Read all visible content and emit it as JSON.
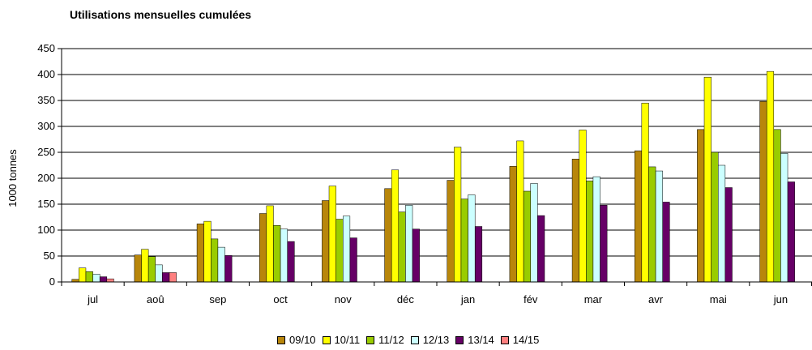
{
  "chart_data": {
    "type": "bar",
    "title": "Utilisations mensuelles cumulées",
    "ylabel": "1000 tonnes",
    "xlabel": "",
    "ylim": [
      0,
      450
    ],
    "yticks": [
      "0",
      "50",
      "100",
      "150",
      "200",
      "250",
      "300",
      "350",
      "400",
      "450"
    ],
    "grid": true,
    "legend_position": "bottom",
    "categories": [
      "jul",
      "aoû",
      "sep",
      "oct",
      "nov",
      "déc",
      "jan",
      "fév",
      "mar",
      "avr",
      "mai",
      "jun"
    ],
    "series": [
      {
        "name": "09/10",
        "color": "#B8860B",
        "values": [
          5,
          52,
          112,
          132,
          157,
          180,
          196,
          223,
          237,
          253,
          294,
          348
        ]
      },
      {
        "name": "10/11",
        "color": "#FFFF00",
        "values": [
          27,
          63,
          117,
          147,
          185,
          216,
          260,
          272,
          293,
          345,
          395,
          406
        ]
      },
      {
        "name": "11/12",
        "color": "#99CC00",
        "values": [
          20,
          49,
          83,
          109,
          121,
          135,
          160,
          175,
          195,
          222,
          250,
          294
        ]
      },
      {
        "name": "12/13",
        "color": "#CCFFFF",
        "values": [
          15,
          33,
          67,
          102,
          127,
          148,
          168,
          190,
          203,
          214,
          225,
          248
        ]
      },
      {
        "name": "13/14",
        "color": "#660066",
        "values": [
          10,
          18,
          51,
          78,
          85,
          102,
          107,
          128,
          148,
          154,
          182,
          193
        ]
      },
      {
        "name": "14/15",
        "color": "#FF8080",
        "values": [
          6,
          18,
          null,
          null,
          null,
          null,
          null,
          null,
          null,
          null,
          null,
          null
        ]
      }
    ]
  }
}
